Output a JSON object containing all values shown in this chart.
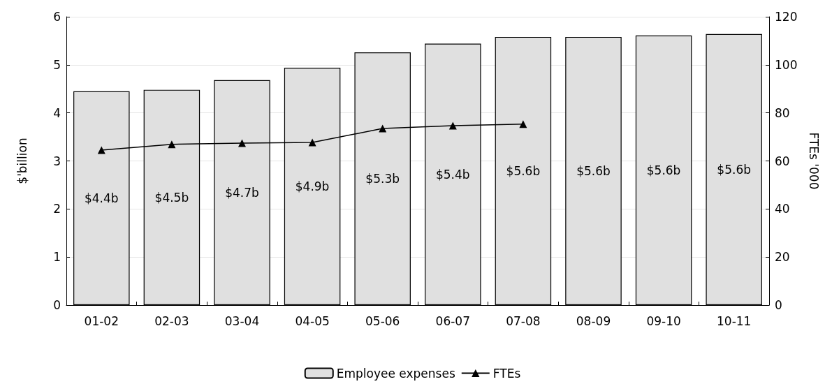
{
  "chart_data": {
    "type": "bar",
    "ylabel": "$'billion",
    "y2label": "FTEs '000",
    "categories": [
      "01-02",
      "02-03",
      "03-04",
      "04-05",
      "05-06",
      "06-07",
      "07-08",
      "08-09",
      "09-10",
      "10-11"
    ],
    "series": [
      {
        "name": "Employee expenses",
        "color": "#e0e0e0",
        "values": [
          4.45,
          4.48,
          4.68,
          4.94,
          5.26,
          5.44,
          5.58,
          5.58,
          5.61,
          5.64
        ],
        "value_labels": [
          "$4.4b",
          "$4.5b",
          "$4.7b",
          "$4.9b",
          "$5.3b",
          "$5.4b",
          "$5.6b",
          "$5.6b",
          "$5.6b",
          "$5.6b"
        ]
      },
      {
        "name": "FTEs",
        "type": "line",
        "axis": "y2",
        "color": "#000000",
        "marker": "triangle",
        "values": [
          64.5,
          66.9,
          67.4,
          67.7,
          73.5,
          74.7,
          75.3,
          null,
          null,
          null
        ]
      }
    ],
    "ylim": [
      0,
      6
    ],
    "yticks": [
      0,
      1,
      2,
      3,
      4,
      5,
      6
    ],
    "y2lim": [
      0,
      120
    ],
    "y2ticks": [
      0,
      20,
      40,
      60,
      80,
      100,
      120
    ],
    "grid": "y",
    "legend": "bottom"
  }
}
